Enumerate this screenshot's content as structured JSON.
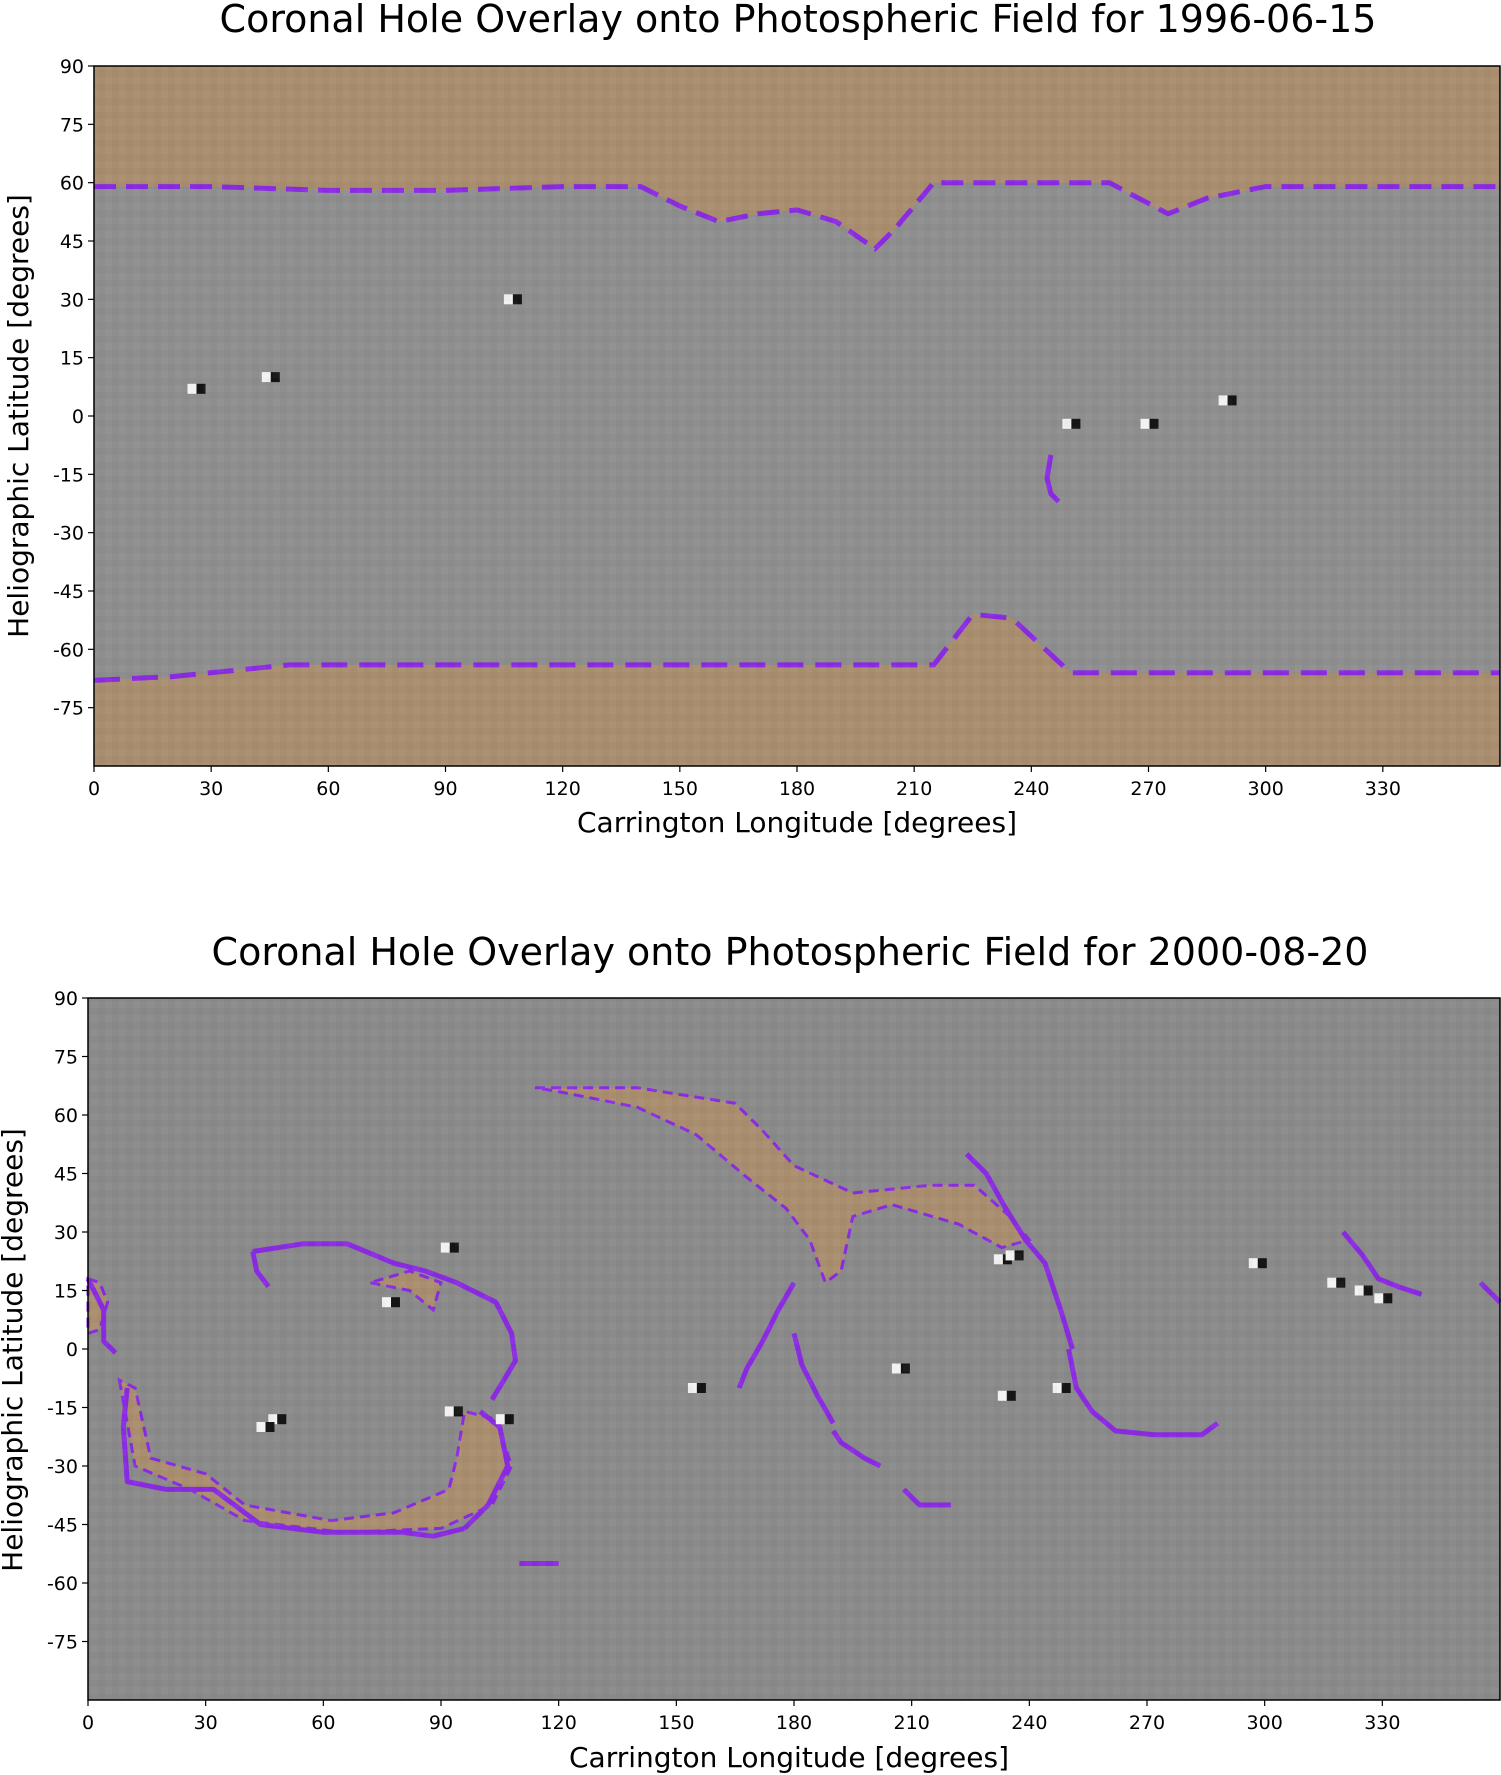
{
  "chart_data": [
    {
      "type": "heatmap",
      "title": "Coronal Hole Overlay onto Photospheric Field for 1996-06-15",
      "xlabel": "Carrington Longitude [degrees]",
      "ylabel": "Heliographic Latitude [degrees]",
      "xlim": [
        0,
        360
      ],
      "ylim": [
        -90,
        90
      ],
      "x_ticks": [
        0,
        30,
        60,
        90,
        120,
        150,
        180,
        210,
        240,
        270,
        300,
        330
      ],
      "y_ticks": [
        90,
        75,
        60,
        45,
        30,
        15,
        0,
        -15,
        -30,
        -45,
        -60,
        -75
      ],
      "colors": {
        "background": "#8e8e8e",
        "coronal_hole": "#a98d6f",
        "contour": "#8a2be2",
        "edge": "#00e6e6"
      },
      "coronal_hole_boundary": {
        "north": [
          [
            0,
            59
          ],
          [
            30,
            59
          ],
          [
            60,
            58
          ],
          [
            90,
            58
          ],
          [
            120,
            59
          ],
          [
            140,
            59
          ],
          [
            150,
            54
          ],
          [
            160,
            50
          ],
          [
            170,
            52
          ],
          [
            180,
            53
          ],
          [
            190,
            50
          ],
          [
            200,
            43
          ],
          [
            205,
            48
          ],
          [
            215,
            60
          ],
          [
            260,
            60
          ],
          [
            275,
            52
          ],
          [
            285,
            56
          ],
          [
            300,
            59
          ],
          [
            360,
            59
          ]
        ],
        "south": [
          [
            0,
            -68
          ],
          [
            20,
            -67
          ],
          [
            50,
            -64
          ],
          [
            90,
            -64
          ],
          [
            150,
            -64
          ],
          [
            200,
            -64
          ],
          [
            215,
            -64
          ],
          [
            225,
            -51
          ],
          [
            235,
            -52
          ],
          [
            250,
            -66
          ],
          [
            300,
            -66
          ],
          [
            360,
            -66
          ]
        ]
      },
      "contour_segments": [
        [
          [
            245,
            -10
          ],
          [
            244,
            -16
          ],
          [
            245,
            -20
          ],
          [
            247,
            -22
          ]
        ]
      ],
      "bipoles": [
        [
          45,
          10
        ],
        [
          26,
          7
        ],
        [
          107,
          30
        ],
        [
          290,
          4
        ],
        [
          270,
          -2
        ],
        [
          250,
          -2
        ]
      ]
    },
    {
      "type": "heatmap",
      "title": "Coronal Hole Overlay onto Photospheric Field for 2000-08-20",
      "xlabel": "Carrington Longitude [degrees]",
      "ylabel": "Heliographic Latitude [degrees]",
      "xlim": [
        0,
        360
      ],
      "ylim": [
        -90,
        90
      ],
      "x_ticks": [
        0,
        30,
        60,
        90,
        120,
        150,
        180,
        210,
        240,
        270,
        300,
        330
      ],
      "y_ticks": [
        90,
        75,
        60,
        45,
        30,
        15,
        0,
        -15,
        -30,
        -45,
        -60,
        -75
      ],
      "colors": {
        "background": "#8a8a8a",
        "coronal_hole": "#a98d6f",
        "contour": "#8a2be2",
        "edge": "#00e6e6"
      },
      "coronal_holes": [
        [
          [
            114,
            67
          ],
          [
            140,
            67
          ],
          [
            165,
            63
          ],
          [
            172,
            56
          ],
          [
            180,
            47
          ],
          [
            195,
            40
          ],
          [
            215,
            42
          ],
          [
            226,
            42
          ],
          [
            235,
            34
          ],
          [
            240,
            28
          ],
          [
            233,
            26
          ],
          [
            222,
            32
          ],
          [
            205,
            37
          ],
          [
            195,
            34
          ],
          [
            192,
            20
          ],
          [
            188,
            17
          ],
          [
            184,
            28
          ],
          [
            178,
            36
          ],
          [
            168,
            44
          ],
          [
            155,
            55
          ],
          [
            140,
            62
          ],
          [
            120,
            66
          ]
        ],
        [
          [
            8,
            -8
          ],
          [
            12,
            -30
          ],
          [
            26,
            -36
          ],
          [
            40,
            -44
          ],
          [
            65,
            -47
          ],
          [
            90,
            -46
          ],
          [
            103,
            -40
          ],
          [
            108,
            -30
          ],
          [
            104,
            -18
          ],
          [
            96,
            -16
          ],
          [
            94,
            -28
          ],
          [
            92,
            -36
          ],
          [
            78,
            -42
          ],
          [
            62,
            -44
          ],
          [
            40,
            -40
          ],
          [
            30,
            -32
          ],
          [
            16,
            -28
          ],
          [
            12,
            -10
          ]
        ],
        [
          [
            72,
            17
          ],
          [
            82,
            15
          ],
          [
            88,
            10
          ],
          [
            90,
            17
          ],
          [
            82,
            20
          ]
        ],
        [
          [
            0,
            18
          ],
          [
            3,
            17
          ],
          [
            5,
            12
          ],
          [
            3,
            5
          ],
          [
            0,
            4
          ]
        ]
      ],
      "contour_segments": [
        [
          [
            42,
            25
          ],
          [
            55,
            27
          ],
          [
            66,
            27
          ],
          [
            78,
            22
          ],
          [
            86,
            20
          ],
          [
            94,
            17
          ],
          [
            104,
            12
          ],
          [
            108,
            4
          ],
          [
            109,
            -3
          ],
          [
            103,
            -13
          ]
        ],
        [
          [
            42,
            25
          ],
          [
            43,
            20
          ],
          [
            46,
            16
          ]
        ],
        [
          [
            10,
            -10
          ],
          [
            9,
            -20
          ],
          [
            10,
            -34
          ],
          [
            20,
            -36
          ],
          [
            32,
            -36
          ],
          [
            44,
            -45
          ],
          [
            60,
            -47
          ],
          [
            80,
            -47
          ],
          [
            88,
            -48
          ],
          [
            96,
            -46
          ]
        ],
        [
          [
            96,
            -46
          ],
          [
            102,
            -40
          ],
          [
            107,
            -30
          ],
          [
            105,
            -20
          ],
          [
            100,
            -16
          ]
        ],
        [
          [
            180,
            17
          ],
          [
            176,
            10
          ],
          [
            172,
            2
          ],
          [
            168,
            -5
          ],
          [
            166,
            -10
          ]
        ],
        [
          [
            180,
            4
          ],
          [
            182,
            -4
          ],
          [
            186,
            -12
          ],
          [
            190,
            -19
          ]
        ],
        [
          [
            190,
            -21
          ],
          [
            192,
            -24
          ],
          [
            198,
            -28
          ],
          [
            202,
            -30
          ]
        ],
        [
          [
            208,
            -36
          ],
          [
            212,
            -40
          ],
          [
            220,
            -40
          ]
        ],
        [
          [
            250,
            0
          ],
          [
            252,
            -10
          ],
          [
            256,
            -16
          ],
          [
            262,
            -21
          ],
          [
            272,
            -22
          ],
          [
            284,
            -22
          ],
          [
            288,
            -19
          ]
        ],
        [
          [
            224,
            50
          ],
          [
            229,
            45
          ],
          [
            234,
            36
          ],
          [
            239,
            28
          ],
          [
            244,
            22
          ],
          [
            248,
            10
          ],
          [
            251,
            0
          ]
        ],
        [
          [
            320,
            30
          ],
          [
            325,
            24
          ],
          [
            329,
            18
          ],
          [
            334,
            16
          ],
          [
            340,
            14
          ]
        ],
        [
          [
            0,
            18
          ],
          [
            4,
            10
          ],
          [
            4,
            2
          ],
          [
            7,
            -1
          ]
        ],
        [
          [
            110,
            -55
          ],
          [
            120,
            -55
          ]
        ],
        [
          [
            355,
            17
          ],
          [
            358,
            14
          ],
          [
            360,
            12
          ]
        ]
      ],
      "bipoles": [
        [
          48,
          -18
        ],
        [
          45,
          -20
        ],
        [
          93,
          -16
        ],
        [
          106,
          -18
        ],
        [
          155,
          -10
        ],
        [
          207,
          -5
        ],
        [
          233,
          23
        ],
        [
          236,
          24
        ],
        [
          248,
          -10
        ],
        [
          234,
          -12
        ],
        [
          92,
          26
        ],
        [
          77,
          12
        ],
        [
          298,
          22
        ],
        [
          318,
          17
        ],
        [
          325,
          15
        ],
        [
          330,
          13
        ]
      ]
    }
  ]
}
